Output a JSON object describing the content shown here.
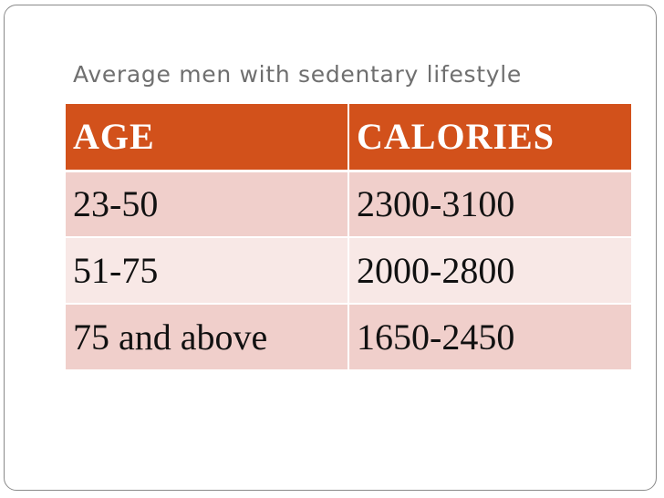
{
  "slide": {
    "title": "Average men with sedentary lifestyle"
  },
  "table": {
    "headers": [
      "AGE",
      "CALORIES"
    ],
    "rows": [
      [
        "23-50",
        "2300-3100"
      ],
      [
        "51-75",
        "2000-2800"
      ],
      [
        "75 and above",
        "1650-2450"
      ]
    ]
  },
  "colors": {
    "header_background": "#d2511b",
    "row_odd_background": "#f0cfcb",
    "row_even_background": "#f8e8e6"
  }
}
